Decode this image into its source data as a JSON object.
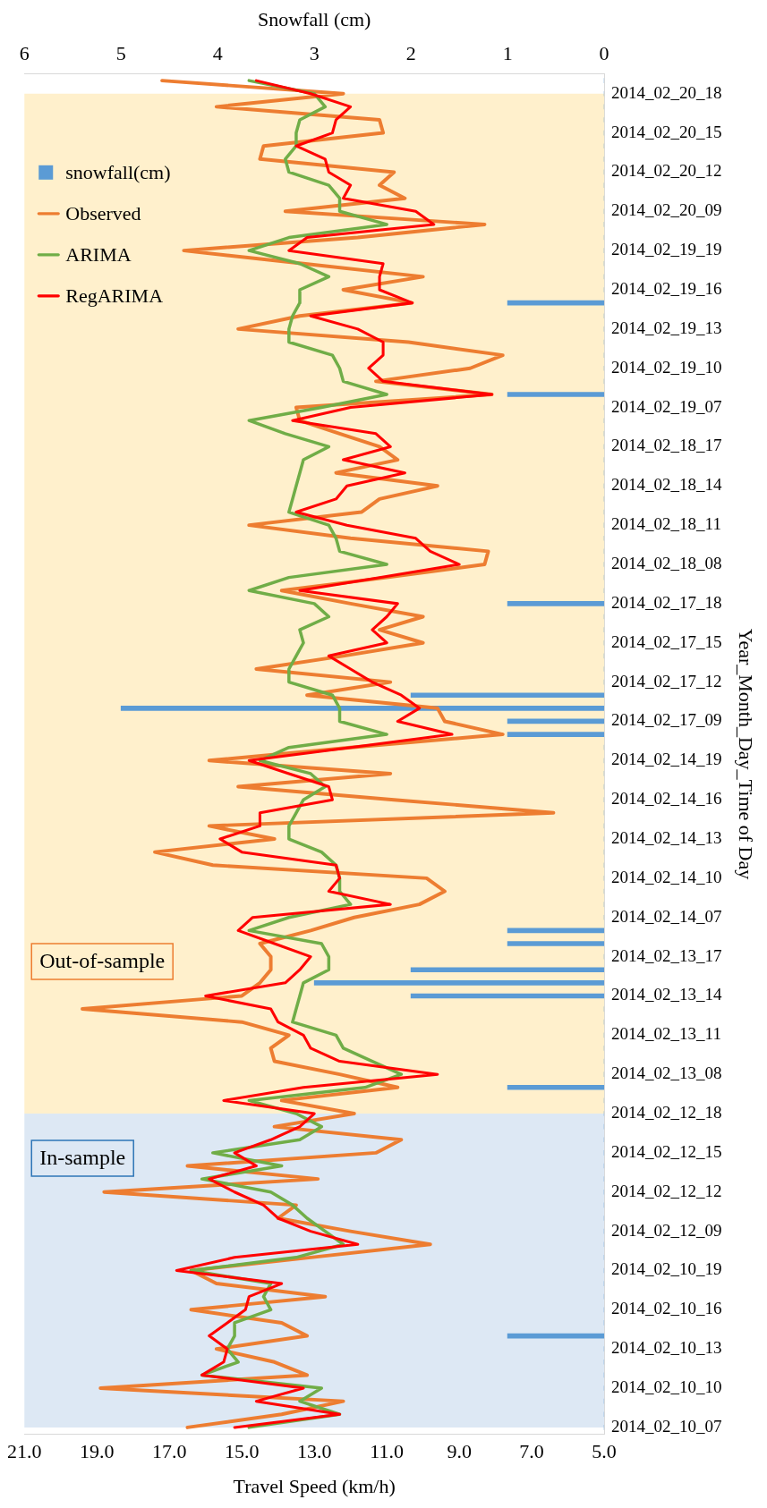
{
  "chart_data": {
    "type": "line",
    "orientation": "horizontal",
    "xlabel": "Travel Speed (km/h)",
    "x2label": "Snowfall (cm)",
    "ylabel": "Year_Month_Day_Time of Day",
    "categories": [
      null,
      "2014_02_20_18",
      null,
      null,
      "2014_02_20_15",
      null,
      null,
      "2014_02_20_12",
      null,
      null,
      "2014_02_20_09",
      null,
      null,
      "2014_02_19_19",
      null,
      null,
      "2014_02_19_16",
      null,
      null,
      "2014_02_19_13",
      null,
      null,
      "2014_02_19_10",
      null,
      null,
      "2014_02_19_07",
      null,
      null,
      "2014_02_18_17",
      null,
      null,
      "2014_02_18_14",
      null,
      null,
      "2014_02_18_11",
      null,
      null,
      "2014_02_18_08",
      null,
      null,
      "2014_02_17_18",
      null,
      null,
      "2014_02_17_15",
      null,
      null,
      "2014_02_17_12",
      null,
      null,
      "2014_02_17_09",
      null,
      null,
      "2014_02_14_19",
      null,
      null,
      "2014_02_14_16",
      null,
      null,
      "2014_02_14_13",
      null,
      null,
      "2014_02_14_10",
      null,
      null,
      "2014_02_14_07",
      null,
      null,
      "2014_02_13_17",
      null,
      null,
      "2014_02_13_14",
      null,
      null,
      "2014_02_13_11",
      null,
      null,
      "2014_02_13_08",
      null,
      null,
      "2014_02_12_18",
      null,
      null,
      "2014_02_12_15",
      null,
      null,
      "2014_02_12_12",
      null,
      null,
      "2014_02_12_09",
      null,
      null,
      "2014_02_10_19",
      null,
      null,
      "2014_02_10_16",
      null,
      null,
      "2014_02_10_13",
      null,
      null,
      "2014_02_10_10",
      null,
      null,
      "2014_02_10_07"
    ],
    "series": [
      {
        "name": "snowfall(cm)",
        "type": "bar",
        "axis": "x2",
        "color": "#5b9bd5",
        "values": [
          0,
          0,
          0,
          0,
          0,
          0,
          0,
          0,
          0,
          0,
          0,
          0,
          0,
          0,
          0,
          0,
          0,
          1,
          0,
          0,
          0,
          0,
          0,
          0,
          1,
          0,
          0,
          0,
          0,
          0,
          0,
          0,
          0,
          0,
          0,
          0,
          0,
          0,
          0,
          0,
          1,
          0,
          0,
          0,
          0,
          0,
          0,
          2,
          5,
          1,
          1,
          0,
          0,
          0,
          0,
          0,
          0,
          0,
          0,
          0,
          0,
          0,
          0,
          0,
          0,
          1,
          1,
          0,
          2,
          3,
          2,
          0,
          0,
          0,
          0,
          0,
          0,
          1,
          0,
          0,
          0,
          0,
          0,
          0,
          0,
          0,
          0,
          0,
          0,
          0,
          0,
          0,
          0,
          0,
          0,
          0,
          1,
          0,
          0,
          0,
          0,
          0,
          0,
          0
        ]
      },
      {
        "name": "Observed",
        "color": "#ed7d31",
        "values": [
          17.2,
          12.2,
          15.7,
          11.2,
          11.1,
          14.4,
          14.5,
          10.8,
          11.2,
          10.5,
          13.8,
          8.3,
          11.8,
          16.6,
          13.3,
          10.0,
          12.2,
          10.3,
          13.4,
          15.1,
          10.4,
          7.8,
          8.7,
          11.3,
          8.1,
          13.5,
          13.4,
          12.3,
          11.2,
          10.7,
          12.4,
          9.6,
          11.2,
          11.7,
          14.8,
          12.0,
          8.2,
          8.3,
          11.0,
          13.9,
          12.0,
          10.0,
          11.2,
          10.0,
          12.2,
          14.6,
          10.9,
          13.2,
          9.6,
          9.4,
          7.8,
          12.0,
          15.9,
          10.9,
          15.1,
          10.8,
          6.4,
          15.9,
          14.1,
          17.4,
          15.8,
          9.9,
          9.4,
          10.1,
          11.9,
          13.1,
          14.5,
          14.2,
          14.2,
          14.5,
          15.0,
          19.4,
          15.0,
          13.7,
          14.2,
          14.1,
          12.3,
          10.7,
          13.9,
          11.9,
          14.1,
          10.6,
          11.3,
          16.5,
          12.9,
          18.8,
          13.5,
          14.0,
          12.0,
          9.8,
          13.1,
          16.4,
          15.7,
          12.7,
          16.4,
          13.9,
          13.2,
          15.7,
          14.1,
          13.2,
          18.9,
          12.2,
          13.9,
          16.5
        ]
      },
      {
        "name": "ARIMA",
        "color": "#70ad47",
        "values": [
          14.8,
          13.0,
          12.7,
          13.4,
          13.5,
          13.5,
          13.8,
          13.7,
          12.6,
          12.3,
          12.3,
          11.0,
          13.7,
          14.8,
          13.4,
          12.6,
          13.4,
          13.4,
          13.6,
          13.7,
          13.7,
          12.5,
          12.3,
          12.2,
          11.0,
          12.8,
          14.8,
          13.8,
          12.6,
          13.3,
          13.4,
          13.5,
          13.6,
          13.7,
          12.6,
          12.4,
          12.3,
          11.0,
          13.7,
          14.8,
          13.0,
          12.6,
          13.4,
          13.3,
          13.5,
          13.7,
          13.7,
          12.5,
          12.3,
          12.3,
          11.0,
          13.7,
          14.5,
          13.1,
          12.7,
          13.3,
          13.5,
          13.7,
          13.7,
          12.8,
          12.4,
          12.3,
          12.3,
          12.0,
          13.7,
          14.8,
          12.8,
          12.6,
          12.6,
          13.3,
          13.4,
          13.5,
          13.6,
          12.4,
          12.2,
          11.4,
          10.6,
          11.6,
          14.8,
          13.5,
          12.8,
          13.4,
          15.8,
          13.9,
          16.1,
          14.2,
          13.6,
          13.2,
          12.7,
          12.2,
          13.5,
          16.4,
          14.2,
          14.4,
          14.2,
          15.2,
          15.2,
          15.4,
          15.1,
          16.1,
          12.8,
          13.4,
          12.3,
          14.8
        ]
      },
      {
        "name": "RegARIMA",
        "color": "#ff0000",
        "values": [
          14.6,
          13.1,
          12.0,
          12.4,
          12.5,
          13.5,
          12.7,
          12.6,
          12.0,
          12.2,
          10.2,
          9.7,
          13.2,
          13.7,
          11.1,
          11.2,
          11.2,
          10.3,
          13.1,
          11.8,
          11.1,
          11.1,
          11.5,
          11.1,
          8.1,
          12.0,
          13.6,
          11.3,
          10.9,
          12.2,
          10.5,
          12.1,
          12.4,
          13.5,
          12.1,
          10.2,
          9.8,
          9.0,
          11.2,
          13.4,
          10.7,
          11.0,
          11.4,
          11.0,
          12.6,
          12.0,
          11.4,
          10.6,
          10.1,
          10.7,
          9.2,
          12.0,
          14.8,
          13.7,
          12.6,
          12.5,
          14.5,
          14.5,
          15.6,
          15.0,
          12.4,
          12.3,
          12.6,
          10.9,
          14.7,
          15.1,
          14.1,
          13.1,
          13.4,
          13.8,
          16.0,
          14.2,
          14.0,
          13.3,
          13.1,
          12.3,
          9.6,
          13.3,
          15.5,
          13.0,
          13.4,
          14.2,
          15.2,
          14.6,
          15.9,
          15.2,
          14.4,
          14.0,
          13.1,
          11.8,
          15.2,
          16.8,
          13.9,
          14.8,
          14.9,
          15.4,
          15.9,
          15.4,
          15.5,
          16.1,
          13.3,
          14.6,
          12.3,
          15.2
        ]
      }
    ],
    "xlim": [
      21,
      5
    ],
    "xticks": [
      {
        "value": 21,
        "label": "21.0"
      },
      {
        "value": 19,
        "label": "19.0"
      },
      {
        "value": 17,
        "label": "17.0"
      },
      {
        "value": 15,
        "label": "15.0"
      },
      {
        "value": 13,
        "label": "13.0"
      },
      {
        "value": 11,
        "label": "11.0"
      },
      {
        "value": 9,
        "label": "9.0"
      },
      {
        "value": 7,
        "label": "7.0"
      },
      {
        "value": 5,
        "label": "5.0"
      }
    ],
    "x2lim": [
      6,
      0
    ],
    "x2ticks": [
      6,
      5,
      4,
      3,
      2,
      1,
      0
    ],
    "bands": [
      {
        "axis": "y",
        "from": "2014_02_12_18",
        "to": "2014_02_10_07",
        "label": "In-sample",
        "color": "#dde8f4"
      },
      {
        "axis": "y",
        "from": "2014_02_20_18",
        "to": "2014_02_12_18",
        "label": "Out-of-sample",
        "color": "#fff0cc"
      }
    ],
    "legend": "top left"
  }
}
